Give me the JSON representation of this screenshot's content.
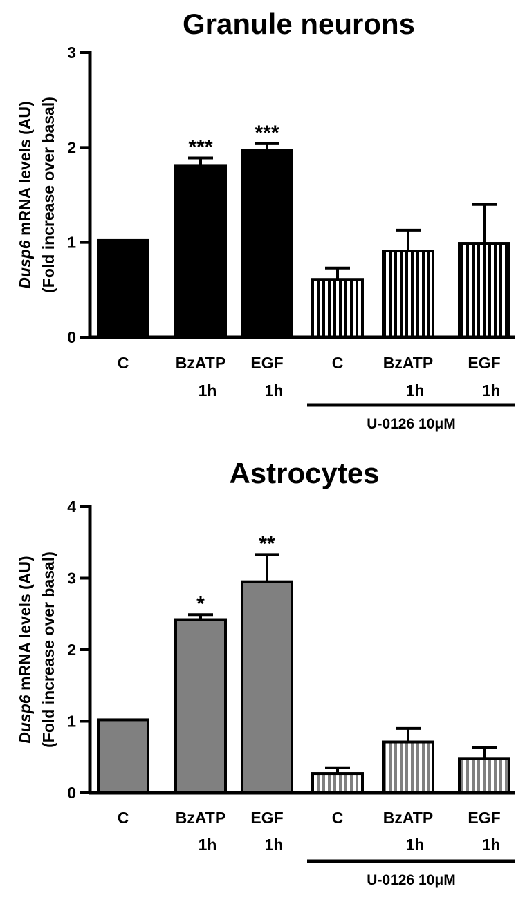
{
  "chart_data": [
    {
      "type": "bar",
      "title": "Granule neurons",
      "ylabel_italic": "Dusp6",
      "ylabel": "mRNA levels (AU)",
      "ylabel2": "(Fold increase over basal)",
      "categories": [
        [
          "C"
        ],
        [
          "BzATP",
          "1h"
        ],
        [
          "EGF",
          "1h"
        ],
        [
          "C"
        ],
        [
          "BzATP",
          "1h"
        ],
        [
          "EGF",
          "1h"
        ]
      ],
      "values": [
        1.02,
        1.81,
        1.97,
        0.61,
        0.91,
        0.99
      ],
      "errors": [
        0,
        0.08,
        0.07,
        0.12,
        0.22,
        0.41
      ],
      "significance": [
        null,
        "***",
        "***",
        null,
        null,
        null
      ],
      "hatched": [
        false,
        false,
        false,
        true,
        true,
        true
      ],
      "treatment": "U-0126 10μM",
      "color": "#000000",
      "hatch_color": "#000000",
      "ylim": [
        0,
        3
      ],
      "yticks": [
        0,
        1,
        2,
        3
      ]
    },
    {
      "type": "bar",
      "title": "Astrocytes",
      "ylabel_italic": "Dusp6",
      "ylabel": "mRNA levels (AU)",
      "ylabel2": "(Fold increase over basal)",
      "categories": [
        [
          "C"
        ],
        [
          "BzATP",
          "1h"
        ],
        [
          "EGF",
          "1h"
        ],
        [
          "C"
        ],
        [
          "BzATP",
          "1h"
        ],
        [
          "EGF",
          "1h"
        ]
      ],
      "values": [
        1.02,
        2.42,
        2.95,
        0.27,
        0.71,
        0.48
      ],
      "errors": [
        0,
        0.07,
        0.38,
        0.08,
        0.19,
        0.15
      ],
      "significance": [
        null,
        "*",
        "**",
        null,
        null,
        null
      ],
      "hatched": [
        false,
        false,
        false,
        true,
        true,
        true
      ],
      "treatment": "U-0126 10μM",
      "color": "#808080",
      "hatch_color": "#808080",
      "ylim": [
        0,
        4
      ],
      "yticks": [
        0,
        1,
        2,
        3,
        4
      ]
    }
  ]
}
